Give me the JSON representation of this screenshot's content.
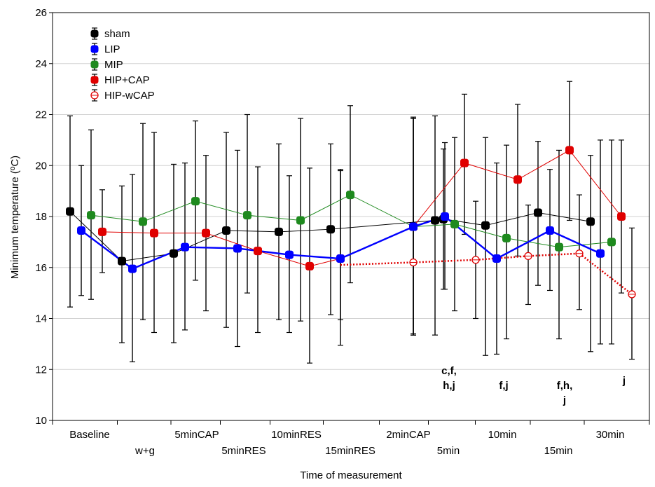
{
  "chart_data": {
    "type": "line",
    "title": "",
    "xlabel": "Time of measurement",
    "ylabel": "Minimum temperature (ºC)",
    "ylim": [
      10,
      26
    ],
    "yticks": [
      10,
      12,
      14,
      16,
      18,
      20,
      22,
      24,
      26
    ],
    "grid": "horizontal",
    "legend_position": "top-left",
    "categories": [
      "Baseline",
      "w+g",
      "5minCAP",
      "5minRES",
      "10minRES",
      "15minRES",
      "2minCAP",
      "5min",
      "10min",
      "15min",
      "30min"
    ],
    "series": [
      {
        "name": "sham",
        "color": "#000000",
        "marker": "filled-square",
        "line": "solid",
        "line_width": 1,
        "values": [
          18.2,
          16.25,
          16.55,
          17.45,
          17.4,
          17.5,
          17.85,
          17.9,
          17.65,
          18.15,
          17.8
        ],
        "err_low": [
          14.45,
          13.05,
          13.05,
          13.65,
          13.95,
          14.15,
          13.35,
          15.15,
          12.55,
          15.3,
          12.7
        ],
        "err_high": [
          21.95,
          19.2,
          20.05,
          21.3,
          20.85,
          20.85,
          21.95,
          20.65,
          21.1,
          20.95,
          20.4
        ]
      },
      {
        "name": "LIP",
        "color": "#0000ff",
        "marker": "filled-square",
        "line": "solid",
        "line_width": 2.4,
        "values": [
          17.45,
          15.95,
          16.8,
          16.75,
          16.5,
          16.35,
          17.6,
          18.0,
          16.35,
          17.45,
          16.55
        ],
        "err_low": [
          14.9,
          12.3,
          13.55,
          12.9,
          13.45,
          12.95,
          13.4,
          15.15,
          12.6,
          15.1,
          13.0
        ],
        "err_high": [
          20.0,
          19.65,
          20.1,
          20.6,
          19.6,
          19.8,
          21.85,
          20.9,
          20.1,
          19.85,
          21.0
        ]
      },
      {
        "name": "MIP",
        "color": "#1e8a1e",
        "marker": "filled-square",
        "line": "solid",
        "line_width": 1,
        "values": [
          18.05,
          17.8,
          18.6,
          18.05,
          17.85,
          18.85,
          17.6,
          17.7,
          17.15,
          16.8,
          17.0
        ],
        "err_low": [
          14.75,
          13.95,
          15.5,
          15.0,
          13.9,
          15.4,
          13.35,
          14.3,
          13.2,
          13.2,
          13.0
        ],
        "err_high": [
          21.4,
          21.65,
          21.75,
          22.0,
          21.85,
          22.35,
          21.9,
          21.1,
          20.8,
          20.6,
          21.0
        ]
      },
      {
        "name": "HIP+CAP",
        "color": "#e00000",
        "marker": "filled-square",
        "line": "solid",
        "line_width": 1,
        "values": [
          17.4,
          17.35,
          17.35,
          16.65,
          16.05,
          16.35,
          17.6,
          20.1,
          19.45,
          20.6,
          18.0
        ],
        "err_low": [
          15.8,
          13.45,
          14.3,
          13.45,
          12.25,
          13.95,
          13.35,
          17.3,
          16.45,
          17.85,
          15.0
        ],
        "err_high": [
          19.05,
          21.3,
          20.4,
          19.95,
          19.9,
          19.85,
          21.85,
          22.8,
          22.4,
          23.3,
          21.0
        ]
      },
      {
        "name": "HIP-wCAP",
        "color": "#e00000",
        "marker": "open-circle",
        "line": "dotted",
        "line_width": 2.5,
        "values": [
          17.4,
          17.35,
          17.35,
          16.65,
          16.05,
          16.1,
          16.2,
          16.3,
          16.45,
          16.55,
          14.95
        ],
        "err_low": [
          15.8,
          13.45,
          14.3,
          13.45,
          12.25,
          13.95,
          13.35,
          14.0,
          14.55,
          14.35,
          12.4
        ],
        "err_high": [
          19.05,
          21.3,
          20.4,
          19.95,
          19.9,
          19.85,
          21.85,
          18.6,
          18.45,
          18.85,
          17.55
        ]
      }
    ],
    "annotations": [
      {
        "category": "5min",
        "lines": [
          "c,f,",
          "h,j"
        ]
      },
      {
        "category": "10min",
        "lines": [
          "f,j"
        ]
      },
      {
        "category": "15min",
        "lines": [
          "f,h,",
          "j"
        ]
      },
      {
        "category": "30min",
        "lines": [
          "j"
        ]
      }
    ]
  }
}
